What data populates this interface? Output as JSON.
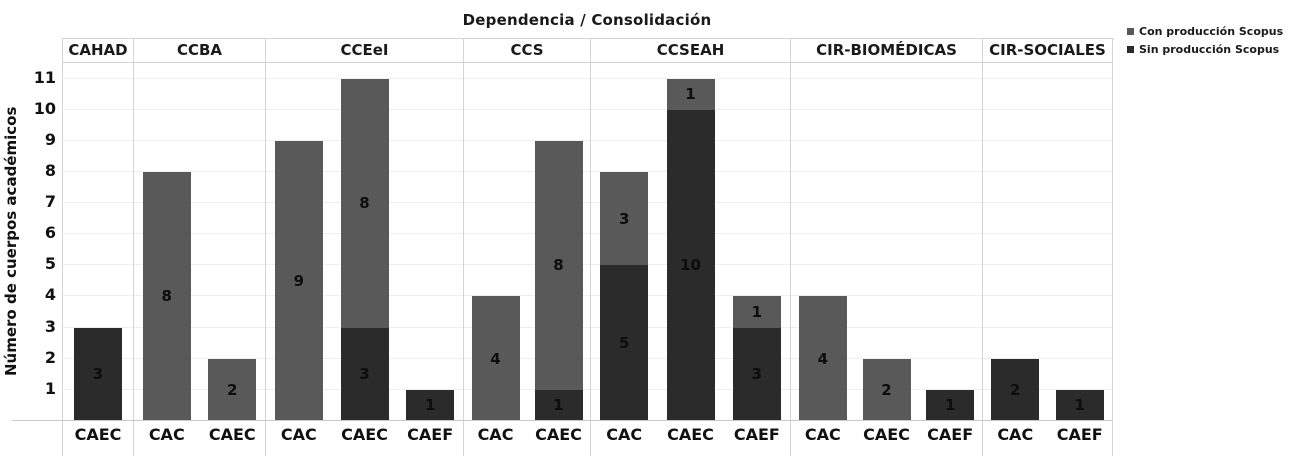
{
  "chart_data": {
    "type": "bar",
    "stacked": true,
    "title": "Dependencia / Consolidación",
    "ylabel": "Número de cuerpos académicos",
    "xlabel": "",
    "yticks": [
      1,
      2,
      3,
      4,
      5,
      6,
      7,
      8,
      9,
      10,
      11
    ],
    "ylim": [
      0,
      11.5
    ],
    "grid": "horizontal-light",
    "legend_position": "top-right",
    "series_colors": {
      "con": "#595959",
      "sin": "#2b2b2b"
    },
    "series_names": {
      "con": "Con producción Scopus",
      "sin": "Sin producción Scopus"
    },
    "groups": [
      {
        "label": "CAHAD",
        "bars": [
          {
            "category": "CAEC",
            "segments": [
              {
                "series": "sin",
                "value": 3
              }
            ]
          }
        ]
      },
      {
        "label": "CCBA",
        "bars": [
          {
            "category": "CAC",
            "segments": [
              {
                "series": "con",
                "value": 8
              }
            ]
          },
          {
            "category": "CAEC",
            "segments": [
              {
                "series": "con",
                "value": 2
              }
            ]
          }
        ]
      },
      {
        "label": "CCEeI",
        "bars": [
          {
            "category": "CAC",
            "segments": [
              {
                "series": "con",
                "value": 9
              }
            ]
          },
          {
            "category": "CAEC",
            "segments": [
              {
                "series": "sin",
                "value": 3
              },
              {
                "series": "con",
                "value": 8
              }
            ]
          },
          {
            "category": "CAEF",
            "segments": [
              {
                "series": "sin",
                "value": 1
              }
            ]
          }
        ]
      },
      {
        "label": "CCS",
        "bars": [
          {
            "category": "CAC",
            "segments": [
              {
                "series": "con",
                "value": 4
              }
            ]
          },
          {
            "category": "CAEC",
            "segments": [
              {
                "series": "sin",
                "value": 1
              },
              {
                "series": "con",
                "value": 8
              }
            ]
          }
        ]
      },
      {
        "label": "CCSEAH",
        "bars": [
          {
            "category": "CAC",
            "segments": [
              {
                "series": "sin",
                "value": 5
              },
              {
                "series": "con",
                "value": 3
              }
            ]
          },
          {
            "category": "CAEC",
            "segments": [
              {
                "series": "sin",
                "value": 10
              },
              {
                "series": "con",
                "value": 1
              }
            ]
          },
          {
            "category": "CAEF",
            "segments": [
              {
                "series": "sin",
                "value": 3
              },
              {
                "series": "con",
                "value": 1
              }
            ]
          }
        ]
      },
      {
        "label": "CIR-BIOMÉDICAS",
        "bars": [
          {
            "category": "CAC",
            "segments": [
              {
                "series": "con",
                "value": 4
              }
            ]
          },
          {
            "category": "CAEC",
            "segments": [
              {
                "series": "con",
                "value": 2
              }
            ]
          },
          {
            "category": "CAEF",
            "segments": [
              {
                "series": "sin",
                "value": 1
              }
            ]
          }
        ]
      },
      {
        "label": "CIR-SOCIALES",
        "bars": [
          {
            "category": "CAC",
            "segments": [
              {
                "series": "sin",
                "value": 2
              }
            ]
          },
          {
            "category": "CAEF",
            "segments": [
              {
                "series": "sin",
                "value": 1
              }
            ]
          }
        ]
      }
    ]
  },
  "legend": [
    {
      "series": "con",
      "label": "Con producción Scopus",
      "color": "#595959"
    },
    {
      "series": "sin",
      "label": "Sin producción Scopus",
      "color": "#2b2b2b"
    }
  ]
}
